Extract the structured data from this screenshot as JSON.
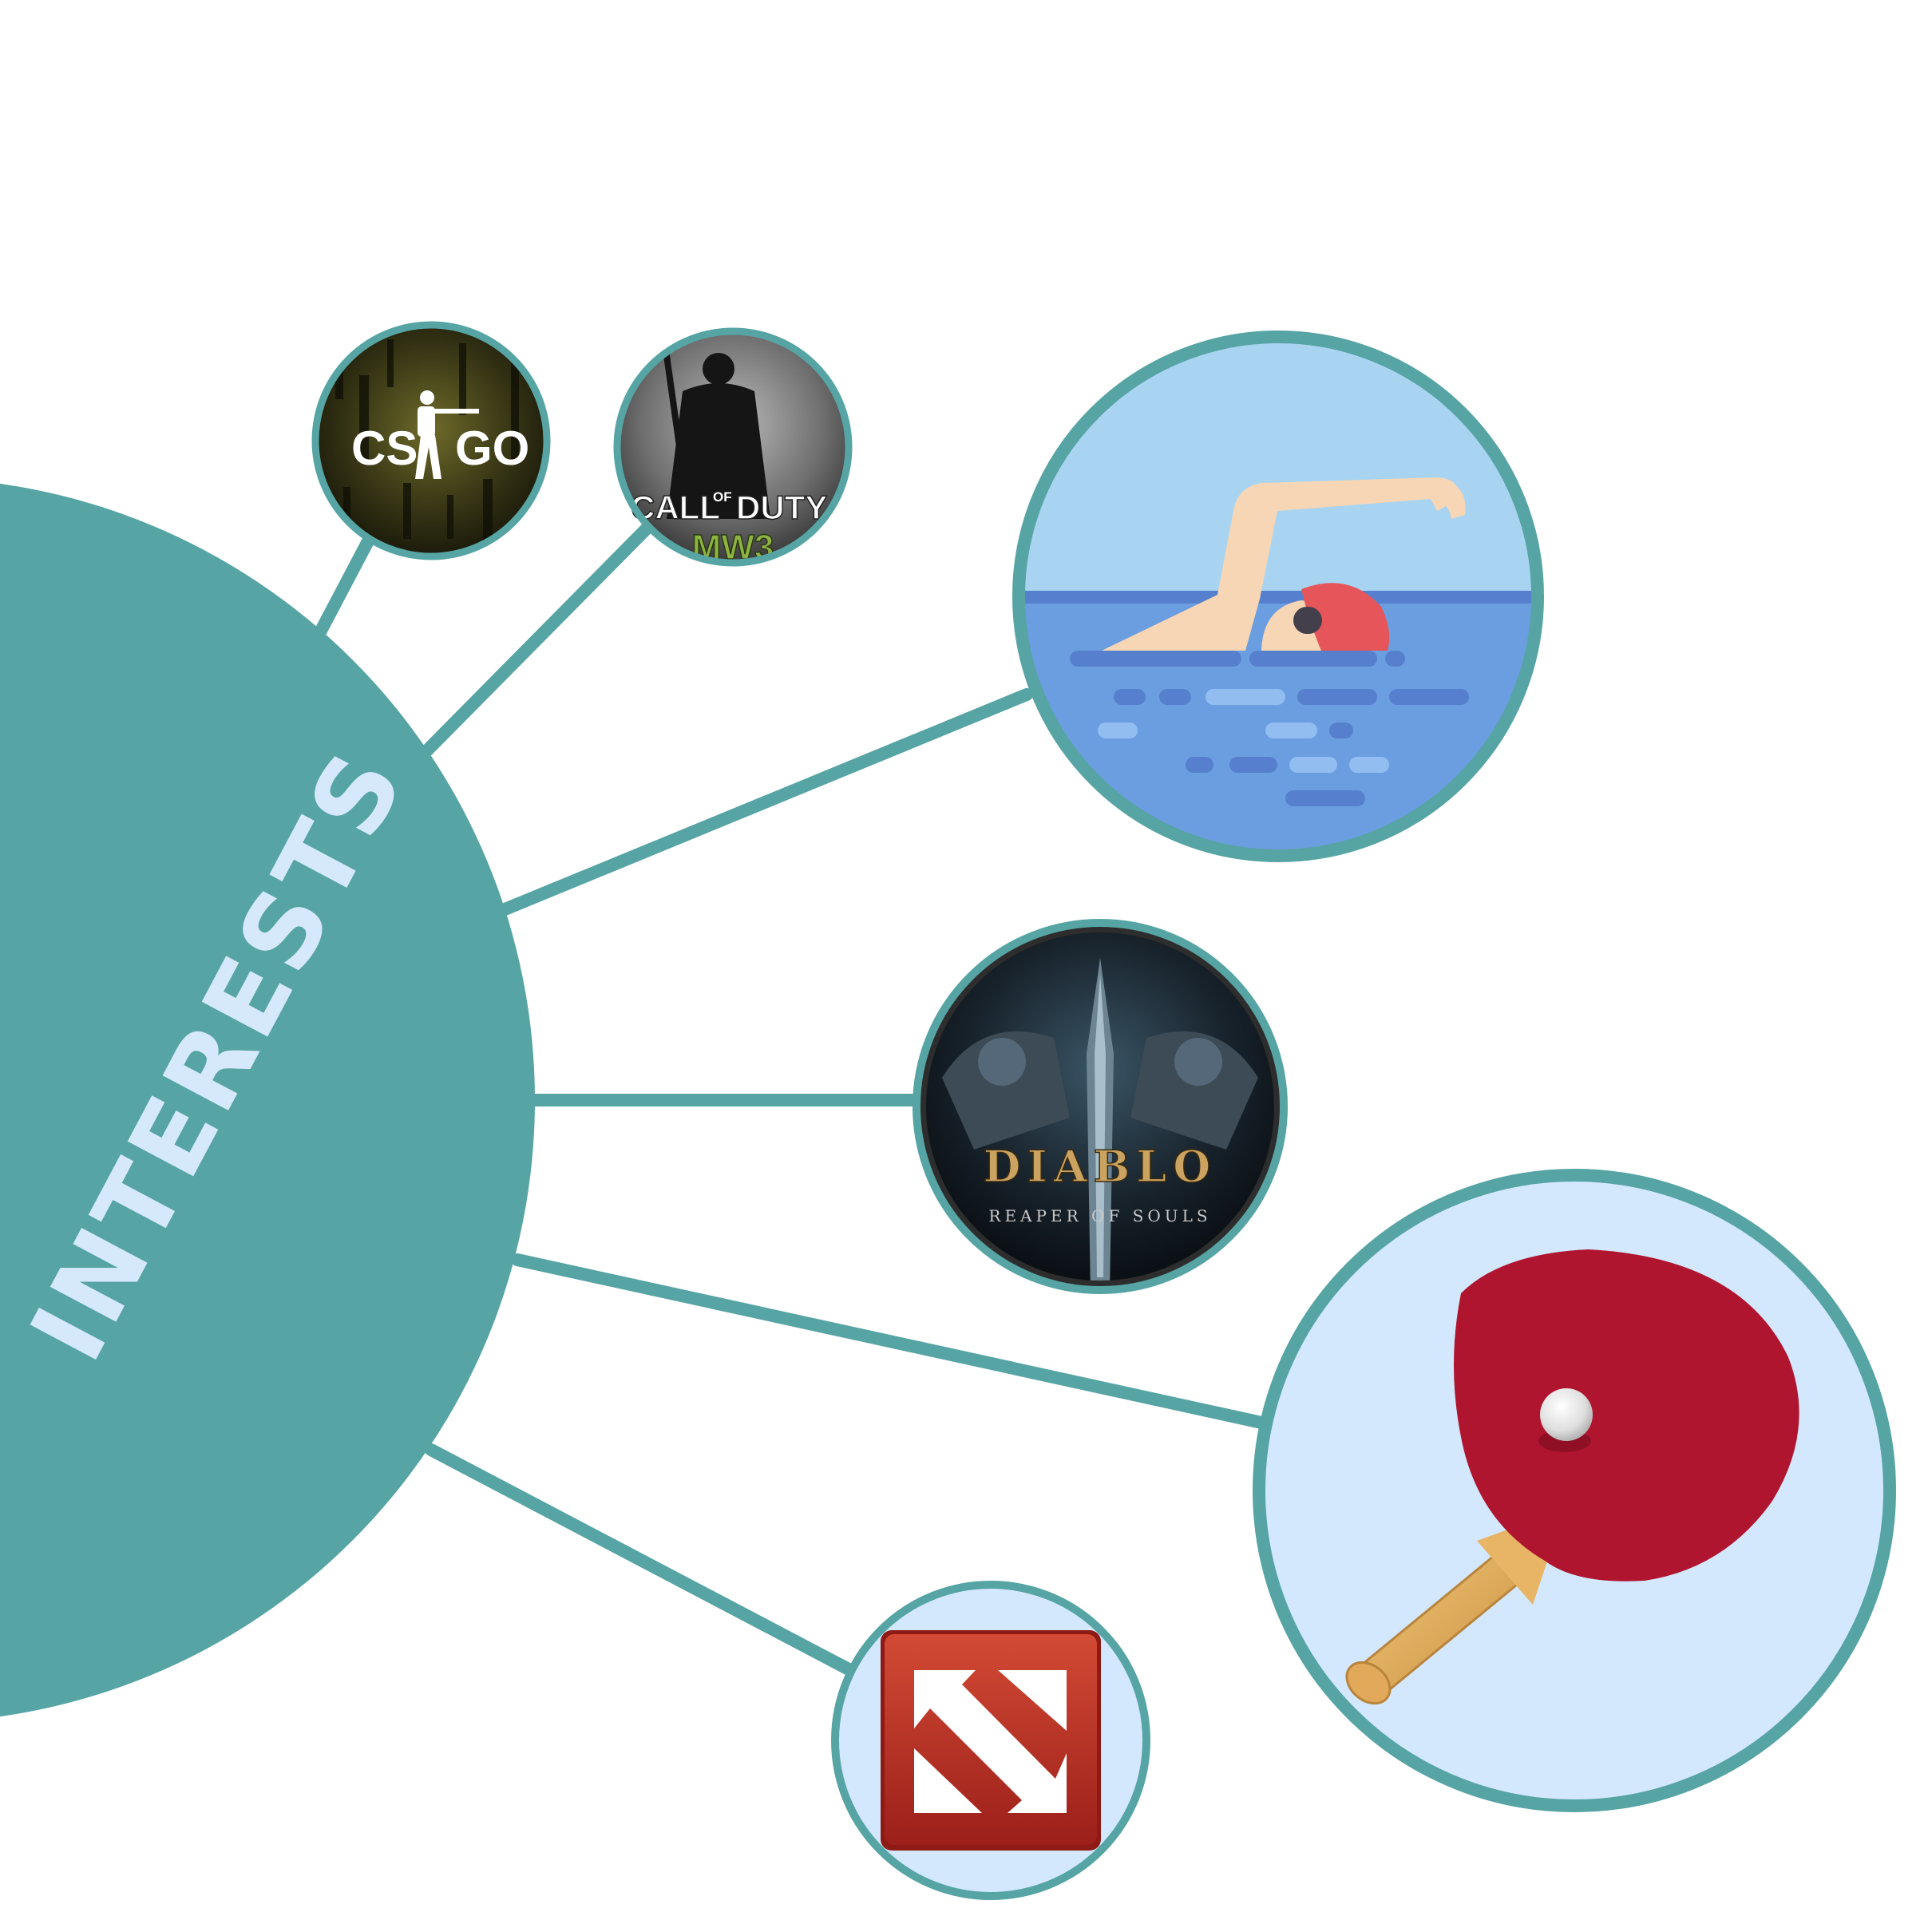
{
  "colors": {
    "teal": "#56a4a4",
    "hub_text": "#d5e9fb",
    "sky": "#a9d4f1",
    "water": "#6b9ee0",
    "water_dark": "#5680cd",
    "water_light": "#92bdf1",
    "skin": "#f7d6b5",
    "cap": "#e5555a",
    "goggles": "#43404b",
    "pale_blue": "#d3e8fc",
    "paddle_red": "#b0152f",
    "handle_wood": "#e7b565",
    "dota_red": "#c1342a",
    "gold": "#cba361"
  },
  "hub": {
    "title": "INTERESTS"
  },
  "nodes": {
    "csgo": {
      "icon": "csgo-logo-icon",
      "text_left": "CS",
      "text_right": "GO"
    },
    "cod": {
      "icon": "call-of-duty-mw3-logo-icon",
      "line1": "CALL",
      "of": "OF",
      "duty": "DUTY",
      "line2": "MW3"
    },
    "swimming": {
      "icon": "swimmer-icon"
    },
    "diablo": {
      "icon": "diablo-reaper-of-souls-logo-icon",
      "title": "DIABLO",
      "subtitle": "REAPER OF SOULS"
    },
    "table_tennis": {
      "icon": "ping-pong-paddle-icon"
    },
    "dota": {
      "icon": "dota-logo-icon"
    }
  }
}
